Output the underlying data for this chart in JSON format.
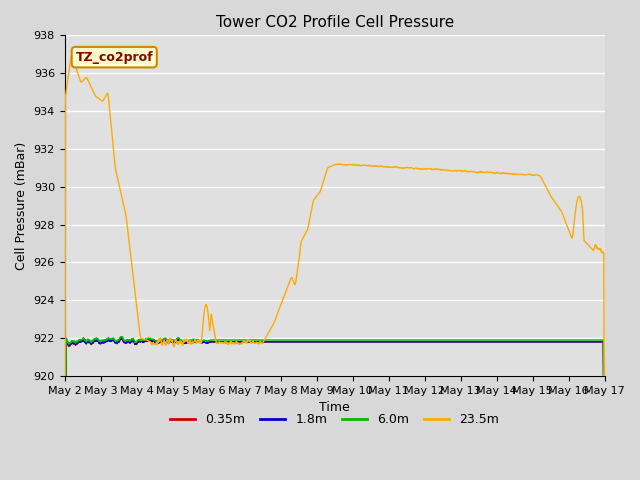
{
  "title": "Tower CO2 Profile Cell Pressure",
  "xlabel": "Time",
  "ylabel": "Cell Pressure (mBar)",
  "ylim": [
    920,
    938
  ],
  "yticks": [
    920,
    922,
    924,
    926,
    928,
    930,
    932,
    934,
    936,
    938
  ],
  "xticklabels": [
    "May 2",
    "May 3",
    "May 4",
    "May 5",
    "May 6",
    "May 7",
    "May 8",
    "May 9",
    "May 10",
    "May 11",
    "May 12",
    "May 13",
    "May 14",
    "May 15",
    "May 16",
    "May 17"
  ],
  "legend_label": "TZ_co2prof",
  "legend_box_color": "#ffffcc",
  "legend_box_edge": "#cc8800",
  "legend_text_color": "#880000",
  "series": [
    {
      "label": "0.35m",
      "color": "#cc0000",
      "lw": 1.0
    },
    {
      "label": "1.8m",
      "color": "#0000cc",
      "lw": 1.0
    },
    {
      "label": "6.0m",
      "color": "#00bb00",
      "lw": 1.0
    },
    {
      "label": "23.5m",
      "color": "#ffaa00",
      "lw": 1.0
    }
  ],
  "bg_color": "#d8d8d8",
  "plot_bg_color": "#e0e0e0",
  "grid_color": "#ffffff",
  "title_fontsize": 11,
  "axis_label_fontsize": 9,
  "tick_fontsize": 8
}
